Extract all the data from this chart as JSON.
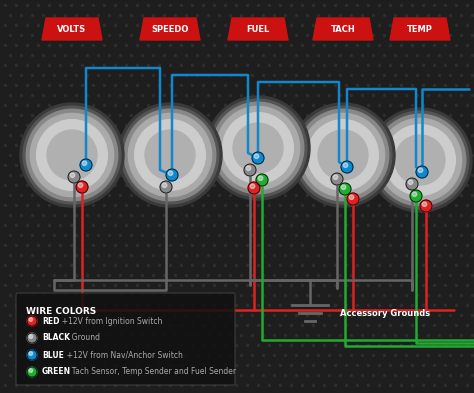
{
  "bg_color": "#1e1e1e",
  "gauge_labels": [
    "VOLTS",
    "SPEEDO",
    "FUEL",
    "TACH",
    "TEMP"
  ],
  "label_bg_color": "#cc1111",
  "wire_colors": {
    "red": "#dd2222",
    "black": "#666666",
    "blue": "#1188cc",
    "green": "#22aa33"
  },
  "legend_items": [
    {
      "color": "#dd2222",
      "bold": "RED",
      "text": "  +12V from Ignition Switch"
    },
    {
      "color": "#888888",
      "bold": "BLACK",
      "text": "  Ground"
    },
    {
      "color": "#1188cc",
      "bold": "BLUE",
      "text": "  +12V from Nav/Anchor Switch"
    },
    {
      "color": "#22aa33",
      "bold": "GREEN",
      "text": "  Tach Sensor, Temp Sender and Fuel Sender"
    }
  ],
  "accessory_ground_text": "Accessory Grounds",
  "legend_title": "WIRE COLORS"
}
